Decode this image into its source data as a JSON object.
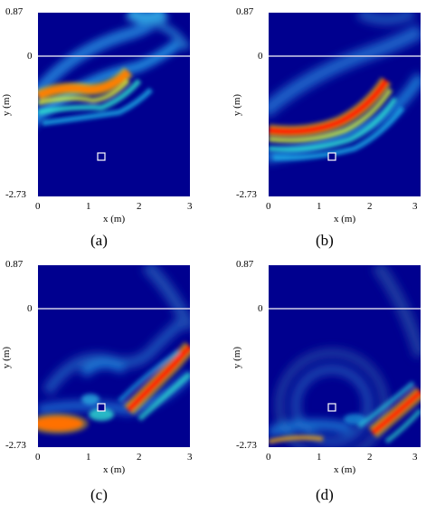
{
  "figure": {
    "colormap": "jet",
    "zero_line_color": "#d0d0e8",
    "marker_color": "#ffffff",
    "panels": [
      {
        "caption": "(a)",
        "x_label": "x (m)",
        "y_label": "y (m)",
        "x_ticks": [
          "0",
          "1",
          "2",
          "3"
        ],
        "y_ticks": [
          "0.87",
          "0",
          "-2.73"
        ],
        "marker": {
          "x": 1.23,
          "y": -1.8
        }
      },
      {
        "caption": "(b)",
        "x_label": "x (m)",
        "y_label": "y (m)",
        "x_ticks": [
          "0",
          "1",
          "2",
          "3"
        ],
        "y_ticks": [
          "0.87",
          "0",
          "-2.73"
        ],
        "marker": {
          "x": 1.23,
          "y": -1.8
        }
      },
      {
        "caption": "(c)",
        "x_label": "x (m)",
        "y_label": "y (m)",
        "x_ticks": [
          "0",
          "1",
          "2",
          "3"
        ],
        "y_ticks": [
          "0.87",
          "0",
          "-2.73"
        ],
        "marker": {
          "x": 1.23,
          "y": -1.8
        }
      },
      {
        "caption": "(d)",
        "x_label": "x (m)",
        "y_label": "y (m)",
        "x_ticks": [
          "0",
          "1",
          "2",
          "3"
        ],
        "y_ticks": [
          "0.87",
          "0",
          "-2.73"
        ],
        "marker": {
          "x": 1.23,
          "y": -1.8
        }
      }
    ]
  },
  "chart_data": [
    {
      "type": "heatmap",
      "xlim": [
        0,
        3
      ],
      "ylim": [
        -2.73,
        0.87
      ],
      "x_ticks": [
        0,
        1,
        2,
        3
      ],
      "y_ticks": [
        0.87,
        0,
        -2.73
      ],
      "xlabel": "x (m)",
      "ylabel": "y (m)",
      "marker": {
        "x": 1.23,
        "y": -1.8
      }
    },
    {
      "type": "heatmap",
      "xlim": [
        0,
        3
      ],
      "ylim": [
        -2.73,
        0.87
      ],
      "x_ticks": [
        0,
        1,
        2,
        3
      ],
      "y_ticks": [
        0.87,
        0,
        -2.73
      ],
      "xlabel": "x (m)",
      "ylabel": "y (m)",
      "marker": {
        "x": 1.23,
        "y": -1.8
      }
    },
    {
      "type": "heatmap",
      "xlim": [
        0,
        3
      ],
      "ylim": [
        -2.73,
        0.87
      ],
      "x_ticks": [
        0,
        1,
        2,
        3
      ],
      "y_ticks": [
        0.87,
        0,
        -2.73
      ],
      "xlabel": "x (m)",
      "ylabel": "y (m)",
      "marker": {
        "x": 1.23,
        "y": -1.8
      }
    },
    {
      "type": "heatmap",
      "xlim": [
        0,
        3
      ],
      "ylim": [
        -2.73,
        0.87
      ],
      "x_ticks": [
        0,
        1,
        2,
        3
      ],
      "y_ticks": [
        0.87,
        0,
        -2.73
      ],
      "xlabel": "x (m)",
      "ylabel": "y (m)",
      "marker": {
        "x": 1.23,
        "y": -1.8
      }
    }
  ]
}
